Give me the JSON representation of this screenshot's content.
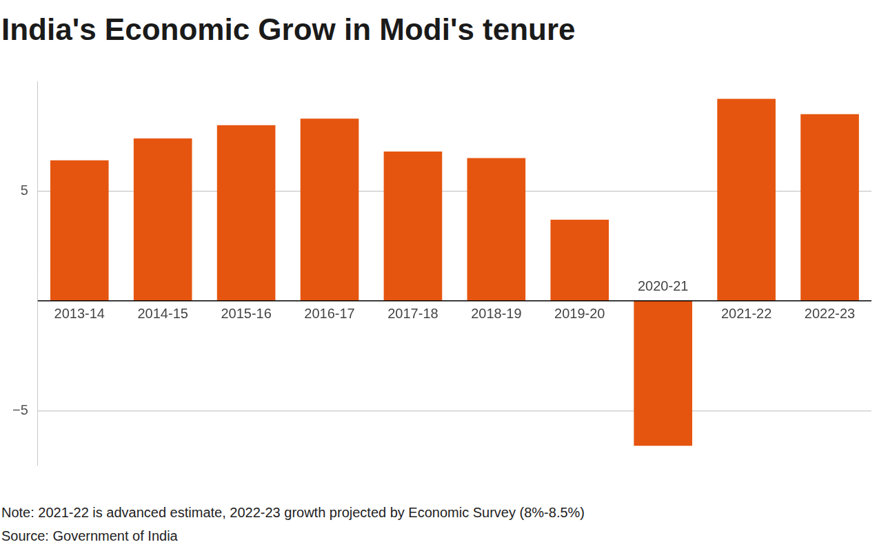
{
  "chart_data": {
    "type": "bar",
    "title": "India's Economic Grow in Modi's tenure",
    "categories": [
      "2013-14",
      "2014-15",
      "2015-16",
      "2016-17",
      "2017-18",
      "2018-19",
      "2019-20",
      "2020-21",
      "2021-22",
      "2022-23"
    ],
    "values": [
      6.4,
      7.4,
      8.0,
      8.3,
      6.8,
      6.5,
      3.7,
      -6.6,
      9.2,
      8.5
    ],
    "color": "#e5550f",
    "ylim": [
      -7.5,
      10
    ],
    "yticks": [
      {
        "value": -5,
        "label": "−5"
      },
      5
    ],
    "grid": true,
    "note": "Note: 2021-22 is advanced estimate, 2022-23 growth projected by Economic Survey (8%-8.5%)",
    "source": "Source: Government of India"
  }
}
